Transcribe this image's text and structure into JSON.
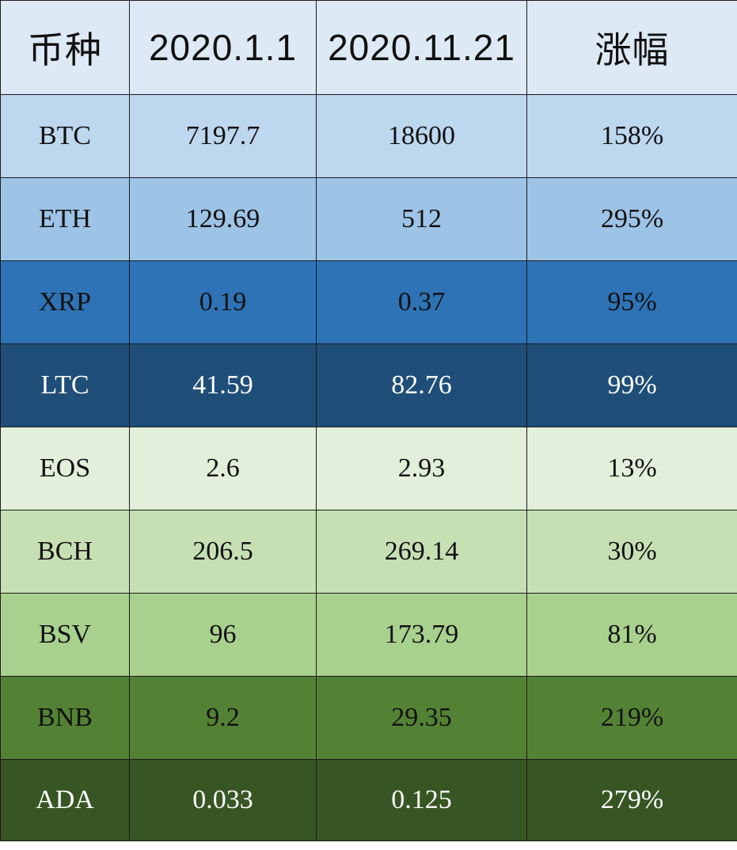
{
  "colors": {
    "header_bg": "#dde9f5",
    "rows": [
      {
        "bg": "#bdd7ee",
        "fg": "#111111"
      },
      {
        "bg": "#9dc3e6",
        "fg": "#111111"
      },
      {
        "bg": "#2e73b6",
        "fg": "#111111"
      },
      {
        "bg": "#1f4e78",
        "fg": "#ffffff"
      },
      {
        "bg": "#e2efda",
        "fg": "#111111"
      },
      {
        "bg": "#c6e0b4",
        "fg": "#111111"
      },
      {
        "bg": "#a9d18e",
        "fg": "#111111"
      },
      {
        "bg": "#548235",
        "fg": "#111111"
      },
      {
        "bg": "#375623",
        "fg": "#ffffff"
      }
    ]
  },
  "chart_data": {
    "type": "table",
    "columns": [
      "币种",
      "2020.1.1",
      "2020.11.21",
      "涨幅"
    ],
    "rows": [
      [
        "BTC",
        "7197.7",
        "18600",
        "158%"
      ],
      [
        "ETH",
        "129.69",
        "512",
        "295%"
      ],
      [
        "XRP",
        "0.19",
        "0.37",
        "95%"
      ],
      [
        "LTC",
        "41.59",
        "82.76",
        "99%"
      ],
      [
        "EOS",
        "2.6",
        "2.93",
        "13%"
      ],
      [
        "BCH",
        "206.5",
        "269.14",
        "30%"
      ],
      [
        "BSV",
        "96",
        "173.79",
        "81%"
      ],
      [
        "BNB",
        "9.2",
        "29.35",
        "219%"
      ],
      [
        "ADA",
        "0.033",
        "0.125",
        "279%"
      ]
    ]
  }
}
